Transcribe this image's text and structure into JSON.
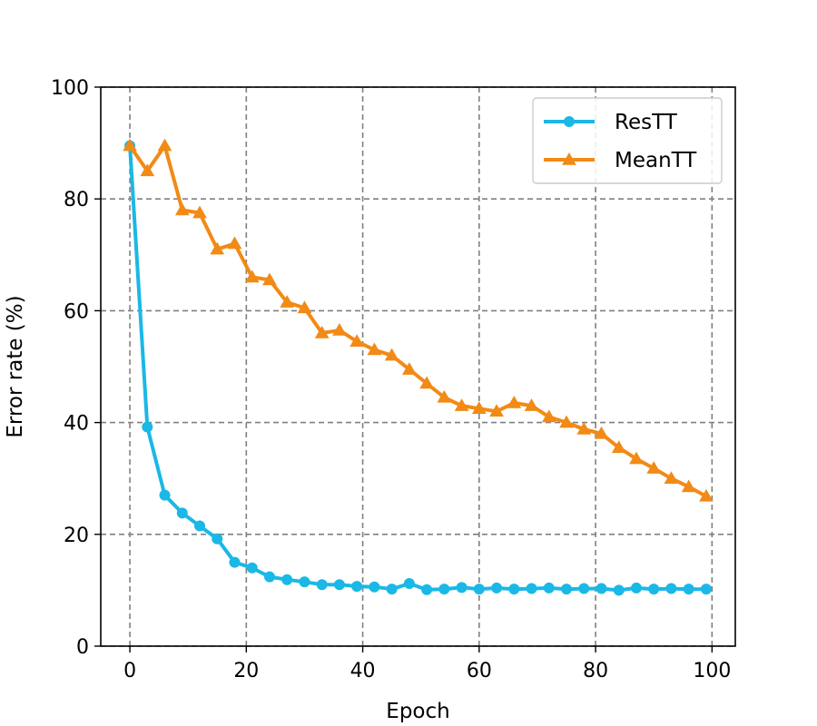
{
  "chart_data": {
    "type": "line",
    "title": "",
    "xlabel": "Epoch",
    "ylabel": "Error rate (%)",
    "xlim": [
      -5,
      104
    ],
    "ylim": [
      0,
      100
    ],
    "xticks": [
      0,
      20,
      40,
      60,
      80,
      100
    ],
    "yticks": [
      0,
      20,
      40,
      60,
      80,
      100
    ],
    "grid": true,
    "legend_position": "top-right",
    "x": [
      0,
      3,
      6,
      9,
      12,
      15,
      18,
      21,
      24,
      27,
      30,
      33,
      36,
      39,
      42,
      45,
      48,
      51,
      54,
      57,
      60,
      63,
      66,
      69,
      72,
      75,
      78,
      81,
      84,
      87,
      90,
      93,
      96,
      99
    ],
    "series": [
      {
        "name": "ResTT",
        "color": "#1ab8e6",
        "marker": "circle",
        "values": [
          89.5,
          39.2,
          27.0,
          23.8,
          21.5,
          19.2,
          15.0,
          14.0,
          12.4,
          11.9,
          11.5,
          11.0,
          11.0,
          10.7,
          10.6,
          10.2,
          11.2,
          10.1,
          10.2,
          10.5,
          10.2,
          10.4,
          10.2,
          10.3,
          10.4,
          10.2,
          10.3,
          10.3,
          10.0,
          10.4,
          10.2,
          10.3,
          10.2,
          10.2
        ]
      },
      {
        "name": "MeanTT",
        "color": "#f28a16",
        "marker": "triangle",
        "values": [
          89.5,
          85.0,
          89.5,
          78.0,
          77.5,
          71.0,
          72.0,
          66.0,
          65.5,
          61.5,
          60.5,
          56.0,
          56.5,
          54.5,
          53.0,
          52.0,
          49.5,
          47.0,
          44.5,
          43.0,
          42.5,
          42.0,
          43.5,
          43.0,
          41.0,
          40.0,
          38.8,
          38.0,
          35.5,
          33.5,
          31.8,
          30.0,
          28.5,
          26.8
        ]
      }
    ]
  }
}
